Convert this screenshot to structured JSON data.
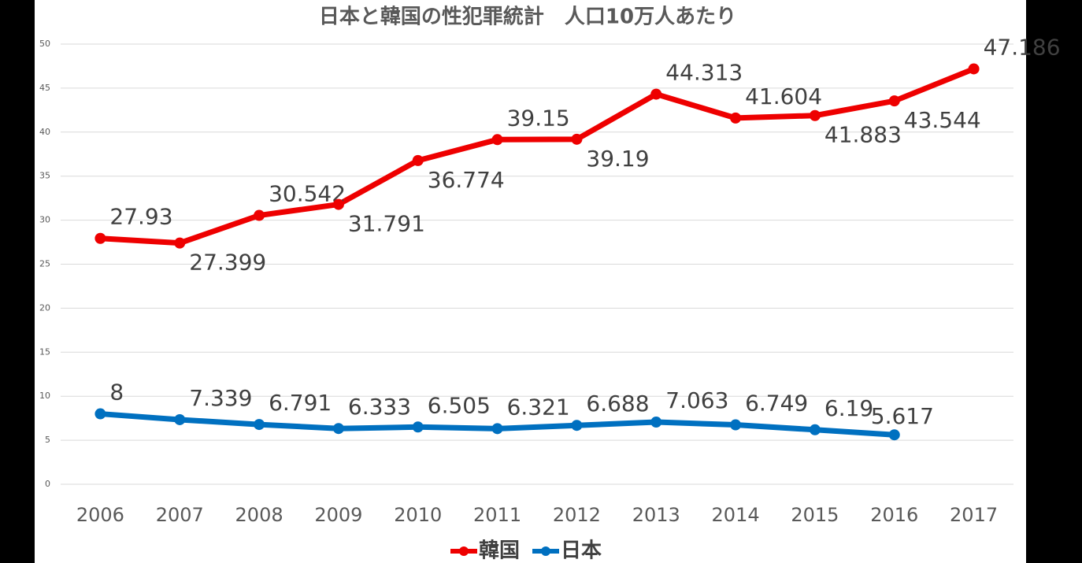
{
  "chart_data": {
    "type": "line",
    "title": "日本と韓国の性犯罪統計　人口10万人あたり",
    "categories": [
      "2006",
      "2007",
      "2008",
      "2009",
      "2010",
      "2011",
      "2012",
      "2013",
      "2014",
      "2015",
      "2016",
      "2017"
    ],
    "series": [
      {
        "name": "韓国",
        "color": "#ee0000",
        "values": [
          27.93,
          27.399,
          30.542,
          31.791,
          36.774,
          39.15,
          39.19,
          44.313,
          41.604,
          41.883,
          43.544,
          47.186
        ]
      },
      {
        "name": "日本",
        "color": "#0070c0",
        "values": [
          8,
          7.339,
          6.791,
          6.333,
          6.505,
          6.321,
          6.688,
          7.063,
          6.749,
          6.19,
          5.617,
          null
        ]
      }
    ],
    "ylim": [
      0,
      50
    ],
    "yticks": [
      0,
      5,
      10,
      15,
      20,
      25,
      30,
      35,
      40,
      45,
      50
    ],
    "grid": true,
    "legend": "bottom"
  }
}
